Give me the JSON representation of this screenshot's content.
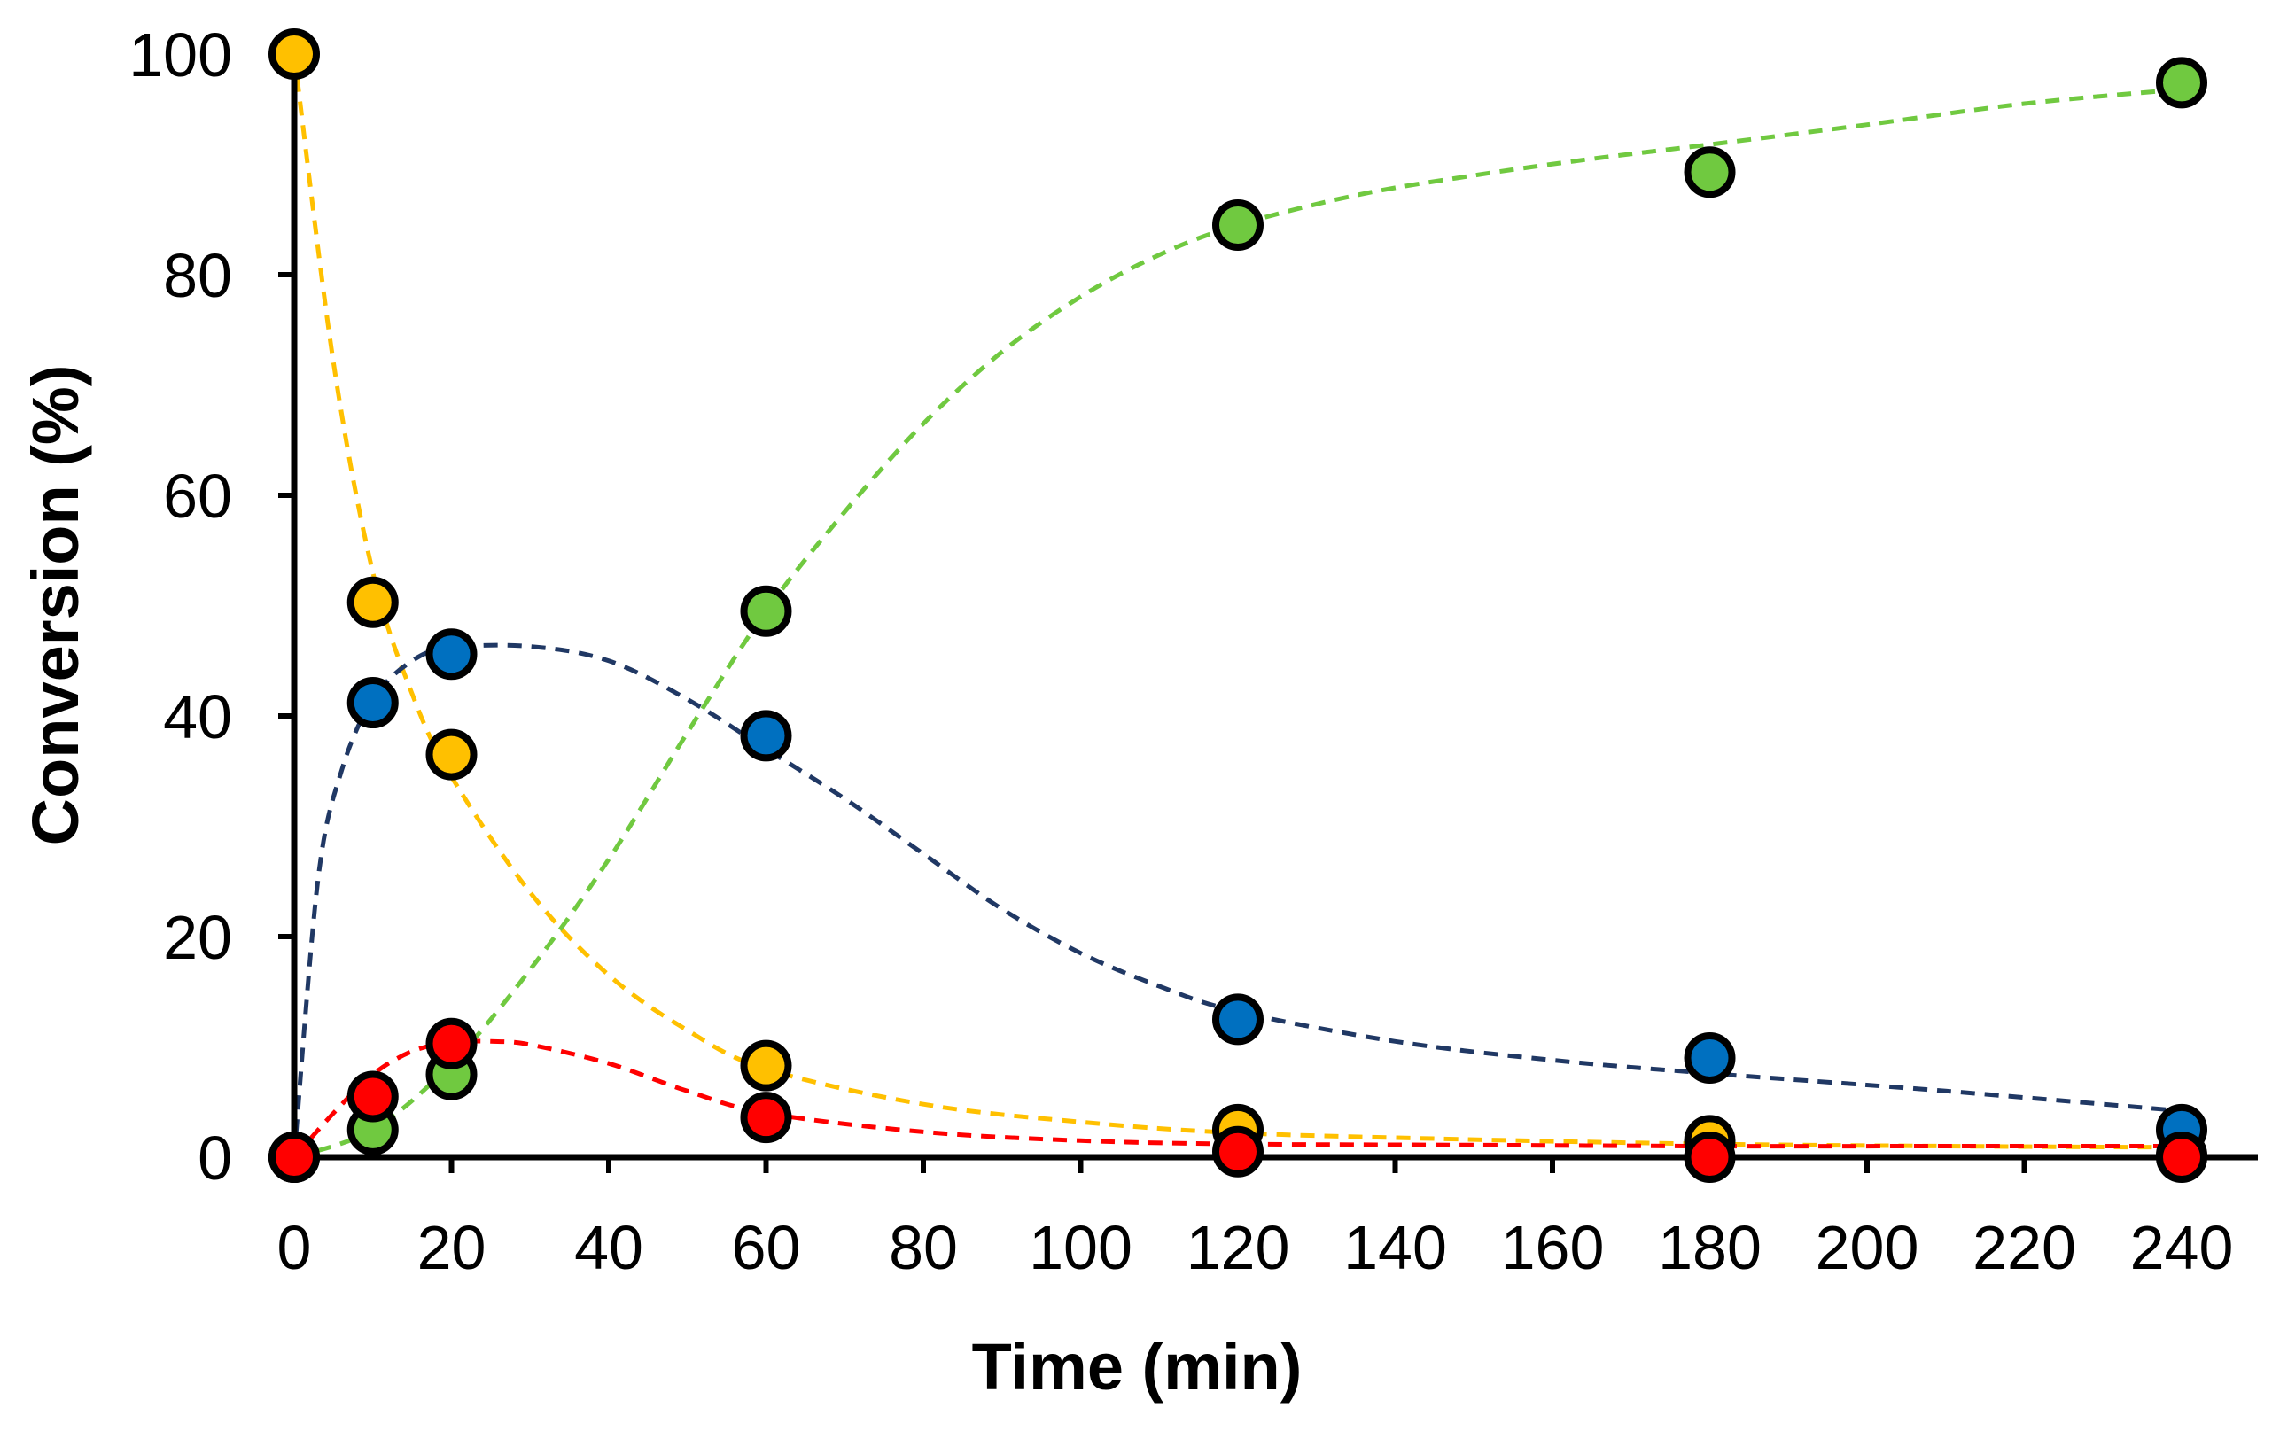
{
  "chart_data": {
    "type": "scatter",
    "title": "",
    "xlabel": "Time (min)",
    "ylabel": "Conversion (%)",
    "xlim": [
      0,
      240
    ],
    "ylim": [
      0,
      100
    ],
    "xticks": [
      0,
      20,
      40,
      60,
      80,
      100,
      120,
      140,
      160,
      180,
      200,
      220,
      240
    ],
    "yticks": [
      0,
      20,
      40,
      60,
      80,
      100
    ],
    "grid": false,
    "legend": "none",
    "series": [
      {
        "name": "yellow",
        "color": "#FFC000",
        "line_color": "#FFC000",
        "x": [
          0,
          10,
          20,
          60,
          120,
          180,
          240
        ],
        "y": [
          100,
          50.3,
          36.5,
          8.3,
          2.5,
          1.5,
          0.2
        ],
        "fit": [
          [
            0,
            100
          ],
          [
            5,
            72
          ],
          [
            10,
            53
          ],
          [
            15,
            42
          ],
          [
            20,
            34.5
          ],
          [
            30,
            24
          ],
          [
            40,
            16.5
          ],
          [
            50,
            11.5
          ],
          [
            60,
            8
          ],
          [
            80,
            4.8
          ],
          [
            100,
            3.2
          ],
          [
            120,
            2.2
          ],
          [
            150,
            1.6
          ],
          [
            180,
            1.2
          ],
          [
            210,
            1.0
          ],
          [
            240,
            0.9
          ]
        ]
      },
      {
        "name": "blue",
        "color": "#0070C0",
        "line_color": "#203864",
        "x": [
          0,
          10,
          20,
          60,
          120,
          180,
          240
        ],
        "y": [
          0,
          41.2,
          45.6,
          38.2,
          12.5,
          9.0,
          2.5
        ],
        "fit": [
          [
            0,
            0
          ],
          [
            3,
            25
          ],
          [
            6,
            35
          ],
          [
            10,
            41.5
          ],
          [
            15,
            45
          ],
          [
            20,
            46.2
          ],
          [
            30,
            46.3
          ],
          [
            40,
            45
          ],
          [
            50,
            41.5
          ],
          [
            60,
            37
          ],
          [
            70,
            32.5
          ],
          [
            80,
            27.5
          ],
          [
            90,
            22.5
          ],
          [
            100,
            18.5
          ],
          [
            110,
            15.5
          ],
          [
            120,
            13.2
          ],
          [
            140,
            10.5
          ],
          [
            160,
            8.8
          ],
          [
            180,
            7.6
          ],
          [
            210,
            6
          ],
          [
            240,
            4.2
          ]
        ]
      },
      {
        "name": "green",
        "color": "#70C940",
        "line_color": "#70C940",
        "x": [
          0,
          10,
          20,
          60,
          120,
          180,
          240
        ],
        "y": [
          0,
          2.5,
          7.5,
          49.5,
          84.5,
          89.3,
          97.4
        ],
        "fit": [
          [
            0,
            0
          ],
          [
            10,
            2.5
          ],
          [
            20,
            8.5
          ],
          [
            30,
            17
          ],
          [
            40,
            27
          ],
          [
            50,
            38.5
          ],
          [
            60,
            49.5
          ],
          [
            70,
            58.5
          ],
          [
            80,
            66.5
          ],
          [
            90,
            73
          ],
          [
            100,
            78
          ],
          [
            110,
            81.8
          ],
          [
            120,
            84.5
          ],
          [
            135,
            87.2
          ],
          [
            150,
            89
          ],
          [
            165,
            90.5
          ],
          [
            180,
            91.8
          ],
          [
            200,
            93.6
          ],
          [
            220,
            95.5
          ],
          [
            240,
            96.8
          ]
        ]
      },
      {
        "name": "red",
        "color": "#FF0000",
        "line_color": "#FF0000",
        "x": [
          0,
          10,
          20,
          60,
          120,
          180,
          240
        ],
        "y": [
          0,
          5.5,
          10.3,
          3.6,
          0.5,
          0.0,
          0.0
        ],
        "fit": [
          [
            0,
            0
          ],
          [
            5,
            4
          ],
          [
            10,
            7.5
          ],
          [
            15,
            9.6
          ],
          [
            20,
            10.4
          ],
          [
            25,
            10.5
          ],
          [
            30,
            10.2
          ],
          [
            40,
            8.5
          ],
          [
            50,
            6
          ],
          [
            60,
            4
          ],
          [
            80,
            2.3
          ],
          [
            100,
            1.5
          ],
          [
            120,
            1.2
          ],
          [
            150,
            1.1
          ],
          [
            180,
            1.0
          ],
          [
            210,
            1.0
          ],
          [
            240,
            1.0
          ]
        ]
      }
    ]
  }
}
